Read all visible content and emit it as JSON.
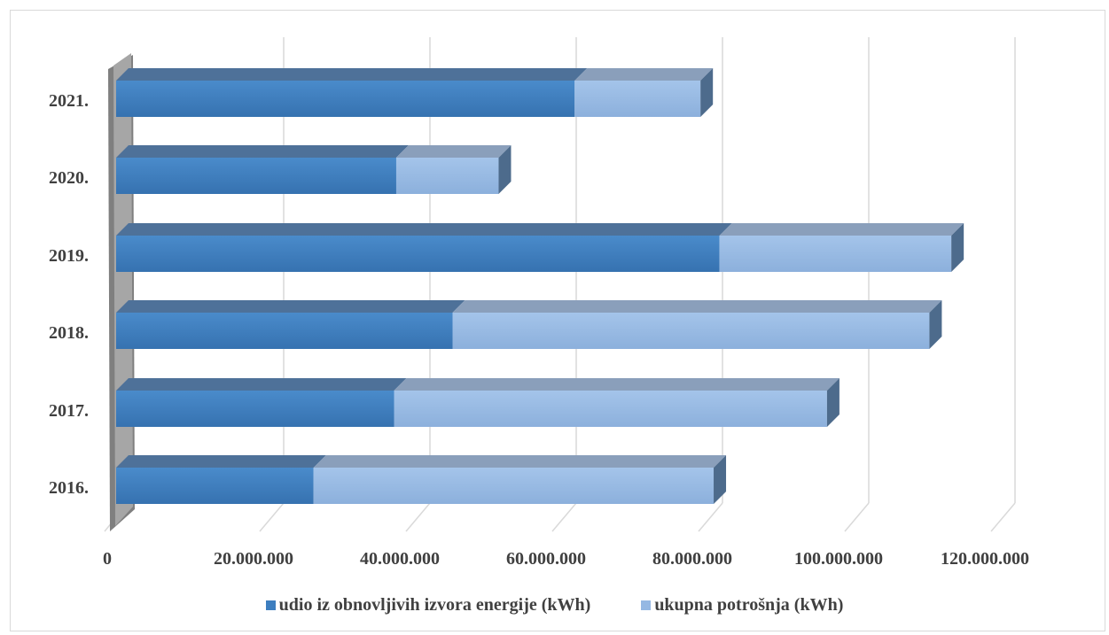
{
  "chart_data": {
    "type": "bar",
    "orientation": "horizontal",
    "stacked": true,
    "style": "3d",
    "categories": [
      "2016.",
      "2017.",
      "2018.",
      "2019.",
      "2020.",
      "2021."
    ],
    "series": [
      {
        "name": "udio iz obnovljivih izvora energije (kWh)",
        "color": "#3d7ebf",
        "values": [
          27000000,
          38000000,
          46000000,
          82500000,
          38300000,
          62700000
        ]
      },
      {
        "name": "ukupna potrošnja (kWh)",
        "color": "#95b8e3",
        "values": [
          54700000,
          59200000,
          65200000,
          31700000,
          14000000,
          17200000
        ]
      }
    ],
    "xlim": [
      0,
      120000000
    ],
    "xticks": [
      0,
      20000000,
      40000000,
      60000000,
      80000000,
      100000000,
      120000000
    ],
    "xtick_labels": [
      "0",
      "20.000.000",
      "40.000.000",
      "60.000.000",
      "80.000.000",
      "100.000.000",
      "120.000.000"
    ],
    "grid": true,
    "legend_position": "bottom",
    "title": "",
    "xlabel": "",
    "ylabel": ""
  }
}
